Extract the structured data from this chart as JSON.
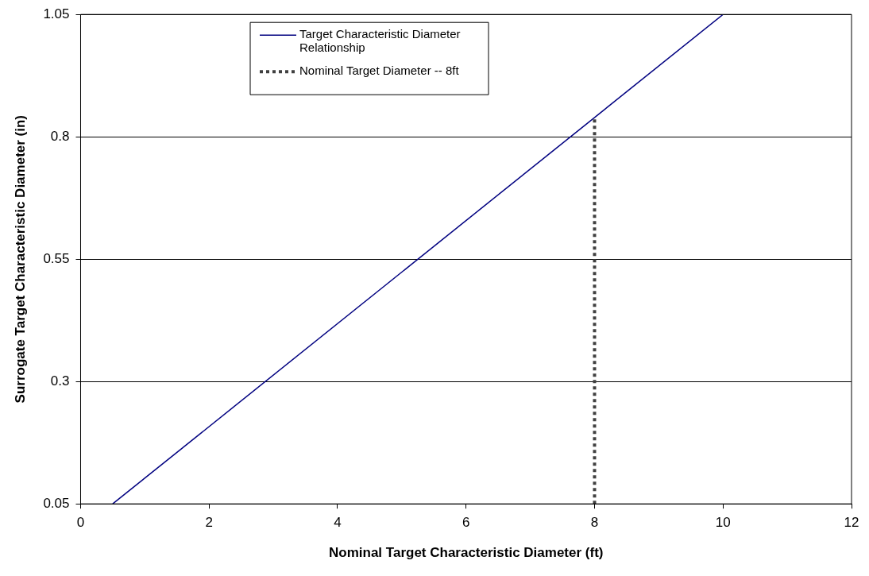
{
  "chart_data": {
    "type": "line",
    "xlabel": "Nominal Target Characteristic Diameter (ft)",
    "ylabel": "Surrogate Target Characteristic Diameter (in)",
    "xlim": [
      0,
      12
    ],
    "xticks": [
      0,
      2,
      4,
      6,
      8,
      10,
      12
    ],
    "ylim": [
      0.05,
      1.05
    ],
    "yticks": [
      0.05,
      0.3,
      0.55,
      0.8,
      1.05
    ],
    "grid": "y",
    "legend": "top",
    "marker": "none",
    "series": [
      {
        "name": "Target Characteristic Diameter Relationship",
        "color": "#000080",
        "x": [
          0.5,
          10
        ],
        "values": [
          0.05,
          1.05
        ],
        "line_style": "solid"
      },
      {
        "name": "Nominal Target Diameter -- 8ft",
        "color": "#404040",
        "x": [
          8,
          8
        ],
        "values": [
          0.05,
          0.84
        ],
        "line_style": "dotted"
      }
    ]
  }
}
